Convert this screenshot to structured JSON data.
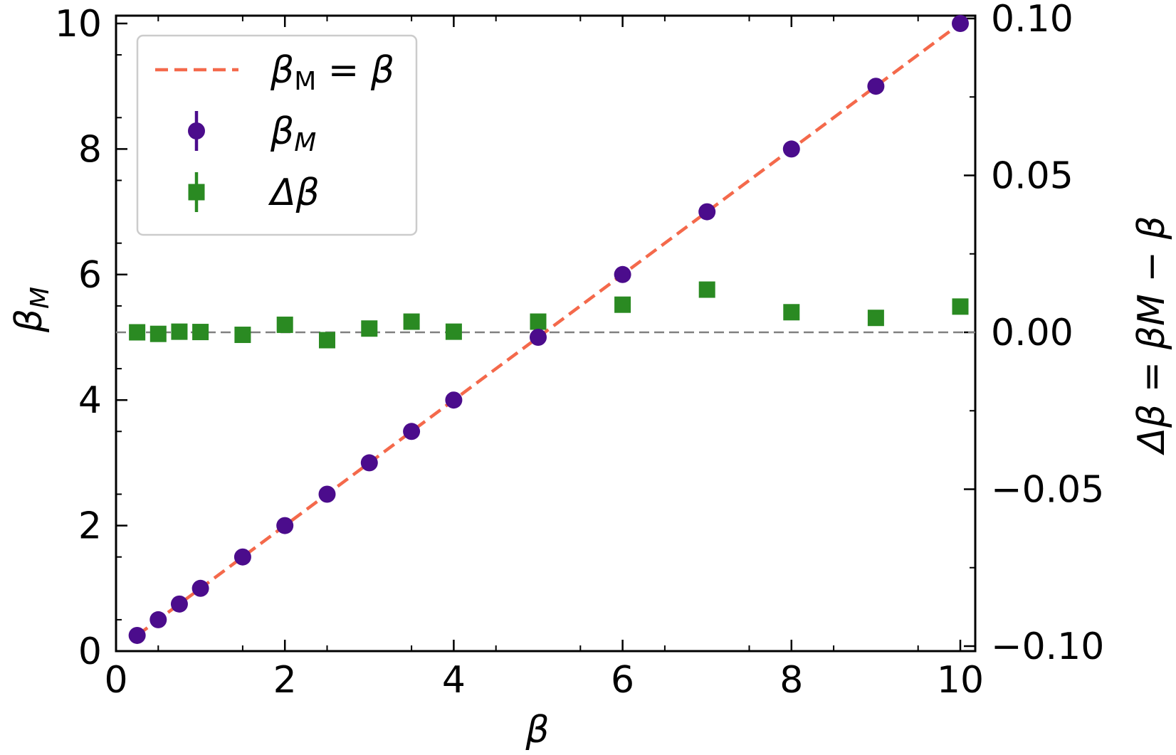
{
  "chart_data": {
    "type": "scatter",
    "x_axis": {
      "label": "β",
      "range": [
        0,
        10.2
      ],
      "ticks": [
        0,
        2,
        4,
        6,
        8,
        10
      ],
      "tick_labels": [
        "0",
        "2",
        "4",
        "6",
        "8",
        "10"
      ]
    },
    "y_axis_left": {
      "label": "βM",
      "range": [
        0,
        10.2
      ],
      "ticks": [
        0,
        2,
        4,
        6,
        8,
        10
      ],
      "tick_labels": [
        "0",
        "2",
        "4",
        "6",
        "8",
        "10"
      ]
    },
    "y_axis_right": {
      "label": "Δβ = βM − β",
      "range": [
        -0.1,
        0.1
      ],
      "ticks": [
        -0.1,
        -0.05,
        0.0,
        0.05,
        0.1
      ],
      "tick_labels": [
        "−0.10",
        "−0.05",
        "0.00",
        "0.05",
        "0.10"
      ]
    },
    "reference_line": {
      "name": "βM = β",
      "color": "#f4694b",
      "style": "dashed",
      "x": [
        0.25,
        10
      ],
      "y": [
        0.25,
        10
      ]
    },
    "zero_line": {
      "color": "#808080",
      "style": "dashed",
      "y_right": 0.0
    },
    "series": [
      {
        "name": "βM",
        "axis": "left",
        "marker": "circle",
        "color": "#4b0c8c",
        "x": [
          0.25,
          0.5,
          0.75,
          1.0,
          1.5,
          2.0,
          2.5,
          3.0,
          3.5,
          4.0,
          5.0,
          6.0,
          7.0,
          8.0,
          9.0,
          10.0
        ],
        "y": [
          0.25,
          0.5,
          0.75,
          1.0,
          1.5,
          2.0,
          2.5,
          3.0,
          3.5,
          4.0,
          5.0,
          6.0,
          7.0,
          8.0,
          9.0,
          10.0
        ]
      },
      {
        "name": "Δβ",
        "axis": "right",
        "marker": "square",
        "color": "#2a8a22",
        "x": [
          0.25,
          0.5,
          0.75,
          1.0,
          1.5,
          2.0,
          2.5,
          3.0,
          3.5,
          4.0,
          5.0,
          6.0,
          7.0,
          8.0,
          9.0,
          10.0
        ],
        "y": [
          0.0,
          -0.0005,
          0.0002,
          0.0001,
          -0.0008,
          0.0024,
          -0.0025,
          0.0012,
          0.0034,
          0.0002,
          0.0034,
          0.0088,
          0.0136,
          0.0064,
          0.0046,
          0.0082
        ]
      }
    ],
    "legend": {
      "position": "top-left",
      "entries": [
        {
          "label_main": "β",
          "label_sub": "M",
          "suffix": " = β",
          "kind": "line"
        },
        {
          "label_main": "β",
          "label_sub": "M",
          "suffix": "",
          "kind": "circle"
        },
        {
          "label_main": "Δβ",
          "label_sub": "",
          "suffix": "",
          "kind": "square"
        }
      ]
    },
    "grid": false
  }
}
